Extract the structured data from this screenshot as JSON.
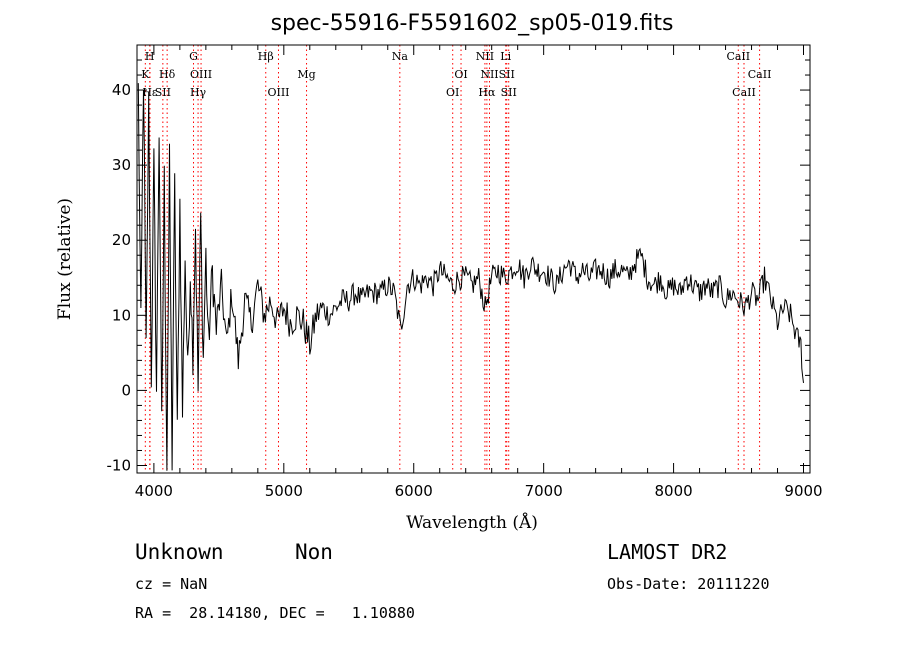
{
  "chart_data": {
    "type": "line",
    "title": "spec-55916-F5591602_sp05-019.fits",
    "xlabel": "Wavelength (Å)",
    "ylabel": "Flux (relative)",
    "xlim": [
      3870,
      9050
    ],
    "ylim": [
      -11,
      46
    ],
    "xticks": [
      4000,
      5000,
      6000,
      7000,
      8000,
      9000
    ],
    "yticks": [
      -10,
      0,
      10,
      20,
      30,
      40
    ],
    "grid": false,
    "series": [
      {
        "color": "#000000",
        "anchors": [
          [
            3880,
            40
          ],
          [
            3900,
            8
          ],
          [
            3920,
            42
          ],
          [
            3940,
            5
          ],
          [
            3960,
            38
          ],
          [
            3980,
            2
          ],
          [
            4000,
            30
          ],
          [
            4020,
            0
          ],
          [
            4040,
            35
          ],
          [
            4060,
            -5
          ],
          [
            4080,
            28
          ],
          [
            4100,
            -10
          ],
          [
            4120,
            30
          ],
          [
            4140,
            -9
          ],
          [
            4160,
            27
          ],
          [
            4180,
            -6
          ],
          [
            4200,
            25
          ],
          [
            4220,
            -3
          ],
          [
            4240,
            18
          ],
          [
            4260,
            2
          ],
          [
            4280,
            16
          ],
          [
            4300,
            5
          ],
          [
            4320,
            22
          ],
          [
            4340,
            0
          ],
          [
            4360,
            23
          ],
          [
            4380,
            4
          ],
          [
            4400,
            18
          ],
          [
            4420,
            6
          ],
          [
            4450,
            16
          ],
          [
            4480,
            8
          ],
          [
            4520,
            14
          ],
          [
            4560,
            6
          ],
          [
            4600,
            13
          ],
          [
            4650,
            4
          ],
          [
            4700,
            12
          ],
          [
            4750,
            9
          ],
          [
            4800,
            14
          ],
          [
            4850,
            10
          ],
          [
            4900,
            12
          ],
          [
            4950,
            9
          ],
          [
            5000,
            11
          ],
          [
            5050,
            9
          ],
          [
            5100,
            10
          ],
          [
            5150,
            9
          ],
          [
            5200,
            6
          ],
          [
            5250,
            10
          ],
          [
            5300,
            11
          ],
          [
            5350,
            10
          ],
          [
            5400,
            11
          ],
          [
            5450,
            12
          ],
          [
            5500,
            12
          ],
          [
            5550,
            13
          ],
          [
            5600,
            12
          ],
          [
            5650,
            13
          ],
          [
            5700,
            13
          ],
          [
            5750,
            13
          ],
          [
            5800,
            14
          ],
          [
            5850,
            13
          ],
          [
            5900,
            8
          ],
          [
            5950,
            14
          ],
          [
            6000,
            15
          ],
          [
            6050,
            14
          ],
          [
            6100,
            15
          ],
          [
            6150,
            14
          ],
          [
            6200,
            16
          ],
          [
            6250,
            15
          ],
          [
            6300,
            14
          ],
          [
            6350,
            15
          ],
          [
            6400,
            15
          ],
          [
            6450,
            14
          ],
          [
            6500,
            15
          ],
          [
            6550,
            11
          ],
          [
            6600,
            15
          ],
          [
            6650,
            16
          ],
          [
            6700,
            15
          ],
          [
            6750,
            16
          ],
          [
            6800,
            17
          ],
          [
            6850,
            15
          ],
          [
            6900,
            17
          ],
          [
            6950,
            16
          ],
          [
            7000,
            16
          ],
          [
            7050,
            15
          ],
          [
            7100,
            14
          ],
          [
            7150,
            16
          ],
          [
            7200,
            17
          ],
          [
            7250,
            15
          ],
          [
            7300,
            16
          ],
          [
            7350,
            15
          ],
          [
            7400,
            16
          ],
          [
            7450,
            16
          ],
          [
            7500,
            15
          ],
          [
            7550,
            16
          ],
          [
            7600,
            16
          ],
          [
            7650,
            15
          ],
          [
            7700,
            17
          ],
          [
            7750,
            18
          ],
          [
            7800,
            15
          ],
          [
            7850,
            14
          ],
          [
            7900,
            15
          ],
          [
            7950,
            13
          ],
          [
            8000,
            14
          ],
          [
            8050,
            13
          ],
          [
            8100,
            15
          ],
          [
            8150,
            14
          ],
          [
            8200,
            13
          ],
          [
            8250,
            14
          ],
          [
            8300,
            13
          ],
          [
            8350,
            14
          ],
          [
            8400,
            12
          ],
          [
            8450,
            13
          ],
          [
            8500,
            12
          ],
          [
            8550,
            11
          ],
          [
            8600,
            13
          ],
          [
            8650,
            12
          ],
          [
            8700,
            15
          ],
          [
            8750,
            12
          ],
          [
            8800,
            9
          ],
          [
            8850,
            11
          ],
          [
            8900,
            10
          ],
          [
            8950,
            7
          ],
          [
            8980,
            6
          ],
          [
            9000,
            1
          ]
        ]
      }
    ],
    "lines": [
      {
        "label": "K",
        "x": 3934,
        "row": 1
      },
      {
        "label": "H",
        "x": 3968,
        "row": 0
      },
      {
        "label": "Hε",
        "x": 3970,
        "row": 2
      },
      {
        "label": "SII",
        "x": 4069,
        "row": 2
      },
      {
        "label": "Hδ",
        "x": 4102,
        "row": 1
      },
      {
        "label": "G",
        "x": 4305,
        "row": 0
      },
      {
        "label": "Hγ",
        "x": 4340,
        "row": 2
      },
      {
        "label": "OIII",
        "x": 4363,
        "row": 1
      },
      {
        "label": "Hβ",
        "x": 4861,
        "row": 0
      },
      {
        "label": "OIII",
        "x": 4959,
        "row": 2
      },
      {
        "label": "Mg",
        "x": 5175,
        "row": 1
      },
      {
        "label": "Na",
        "x": 5893,
        "row": 0
      },
      {
        "label": "OI",
        "x": 6300,
        "row": 2
      },
      {
        "label": "OI",
        "x": 6364,
        "row": 1
      },
      {
        "label": "NII",
        "x": 6548,
        "row": 0
      },
      {
        "label": "Hα",
        "x": 6563,
        "row": 2
      },
      {
        "label": "NII",
        "x": 6583,
        "row": 1
      },
      {
        "label": "Li",
        "x": 6708,
        "row": 0
      },
      {
        "label": "SII",
        "x": 6716,
        "row": 1
      },
      {
        "label": "SII",
        "x": 6731,
        "row": 2
      },
      {
        "label": "CaII",
        "x": 8498,
        "row": 0
      },
      {
        "label": "CaII",
        "x": 8542,
        "row": 2
      },
      {
        "label": "CaII",
        "x": 8662,
        "row": 1
      }
    ],
    "line_color": "#ff0000"
  },
  "info": {
    "class_label": "Unknown",
    "subclass_label": "Non",
    "survey": "LAMOST DR2",
    "cz_text": "cz = NaN",
    "obs_date_text": "Obs-Date: 20111220",
    "radec_text": "RA =  28.14180, DEC =   1.10880"
  }
}
